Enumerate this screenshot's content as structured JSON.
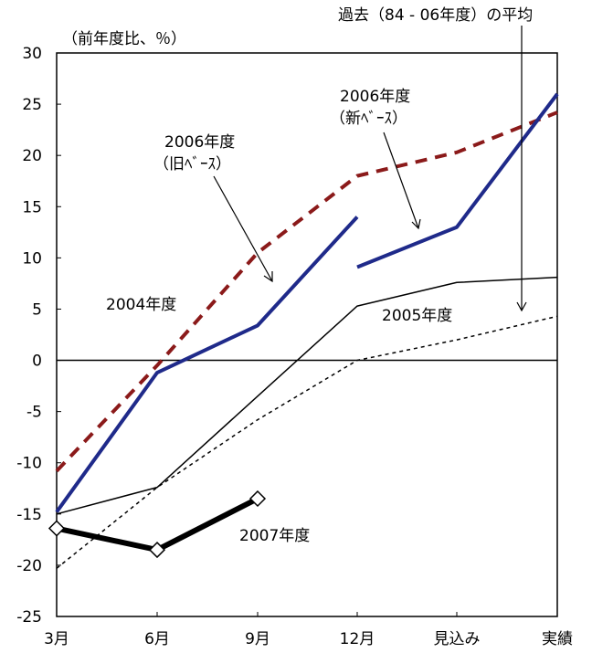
{
  "chart_data": {
    "type": "line",
    "ylabel": "（前年度比、％）",
    "categories": [
      "3月",
      "6月",
      "9月",
      "12月",
      "見込み",
      "実績"
    ],
    "ylim": [
      -25,
      30
    ],
    "yticks": [
      30,
      25,
      20,
      15,
      10,
      5,
      0,
      -5,
      -10,
      -15,
      -20,
      -25
    ],
    "grid": false,
    "series": [
      {
        "name": "2004年度",
        "color": "#8B1A1A",
        "style": "dashed-bold",
        "x": [
          0,
          1,
          2,
          3,
          4,
          5
        ],
        "values": [
          -10.8,
          -0.5,
          10.5,
          18.0,
          20.3,
          24.2
        ]
      },
      {
        "name": "2006年度（旧ベース）",
        "color": "#1F2A8A",
        "style": "solid-bold",
        "x": [
          0,
          1,
          2,
          3
        ],
        "values": [
          -14.8,
          -1.2,
          3.4,
          14.0
        ]
      },
      {
        "name": "2006年度（新ベース）",
        "color": "#1F2A8A",
        "style": "solid-bold",
        "x": [
          3,
          4,
          5
        ],
        "values": [
          9.1,
          13.0,
          26.0
        ]
      },
      {
        "name": "2005年度",
        "color": "#000000",
        "style": "solid-thin",
        "x": [
          0,
          1,
          2,
          3,
          4,
          5
        ],
        "values": [
          -15.0,
          -12.4,
          -3.5,
          5.3,
          7.6,
          8.1
        ]
      },
      {
        "name": "過去（84 - 06年度）の平均",
        "color": "#000000",
        "style": "dotted",
        "x": [
          0,
          1,
          2,
          3,
          4,
          5
        ],
        "values": [
          -20.3,
          -12.4,
          -5.8,
          0.0,
          2.0,
          4.3
        ]
      },
      {
        "name": "2007年度",
        "color": "#000000",
        "style": "solid-heavy-markers",
        "x": [
          0,
          1,
          2
        ],
        "values": [
          -16.4,
          -18.5,
          -13.5
        ]
      }
    ],
    "annotations": {
      "s2004": "2004年度",
      "s2005": "2005年度",
      "s2007": "2007年度",
      "old_line1": "2006年度",
      "old_line2": "（旧ﾍﾞｰｽ）",
      "new_line1": "2006年度",
      "new_line2": "（新ﾍﾞｰｽ）",
      "avg": "過去（84 - 06年度）の平均"
    }
  }
}
